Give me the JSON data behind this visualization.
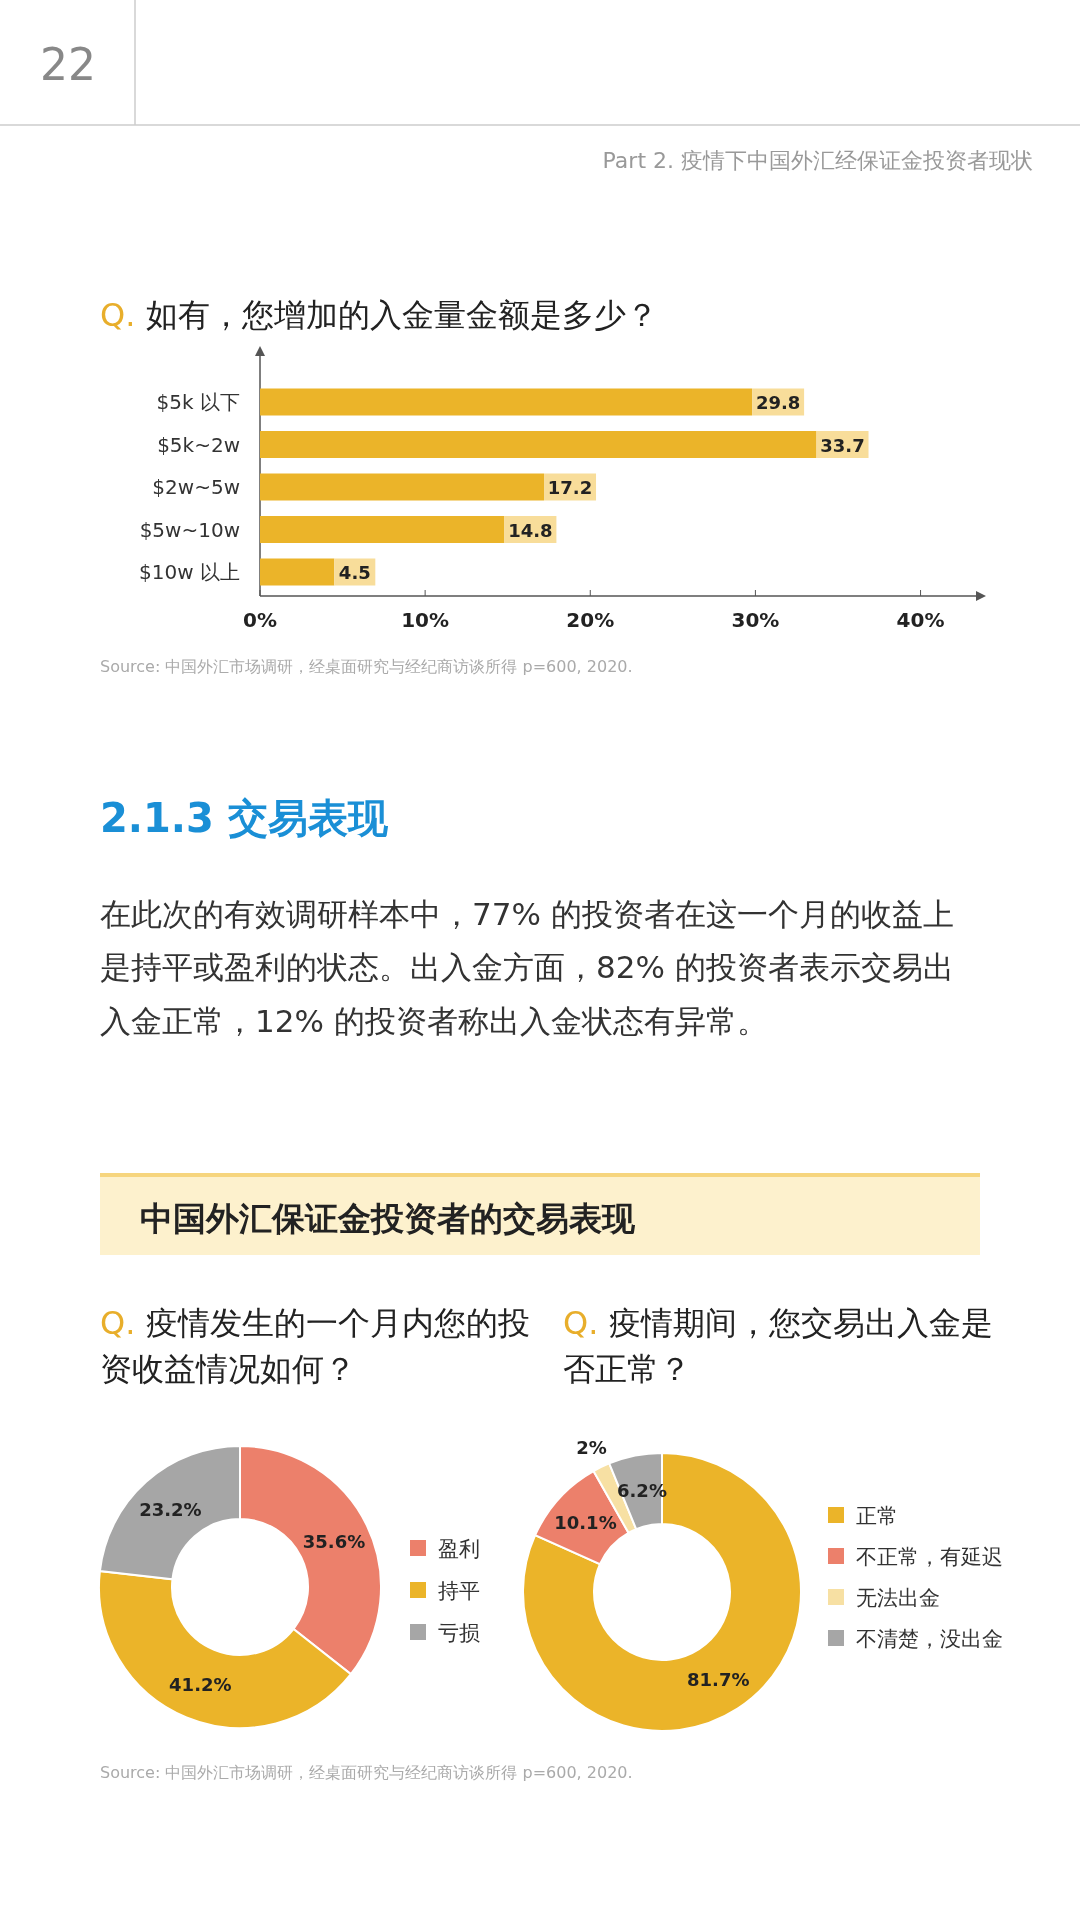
{
  "chart_data": [
    {
      "type": "bar",
      "orientation": "horizontal",
      "title": "Q. 如有，您增加的入金量金额是多少？",
      "categories": [
        "$5k 以下",
        "$5k~2w",
        "$2w~5w",
        "$5w~10w",
        "$10w 以上"
      ],
      "values": [
        29.8,
        33.7,
        17.2,
        14.8,
        4.5
      ],
      "color": "#ebb429",
      "data_labels": true,
      "xlim": [
        0,
        43.6
      ],
      "xticks": [
        {
          "value": 0,
          "label": "0%"
        },
        {
          "value": 10,
          "label": "10%"
        },
        {
          "value": 20,
          "label": "20%"
        },
        {
          "value": 30,
          "label": "30%"
        },
        {
          "value": 40,
          "label": "40%"
        }
      ],
      "annotations": [
        "22",
        "Part 2. 疫情下中国外汇经保证金投资者现状",
        "Source: 中国外汇市场调研，经桌面研究与经纪商访谈所得 p=600, 2020."
      ]
    },
    {
      "type": "donut",
      "title": "Q. 疫情发生的一个月内您的投资收益情况如何？",
      "categories": [
        "盈利",
        "持平",
        "亏损"
      ],
      "values": [
        35.6,
        41.2,
        23.2
      ],
      "colors": [
        "#ec806b",
        "#ebb429",
        "#a6a6a6"
      ],
      "value_labels": [
        "35.6%",
        "41.2%",
        "23.2%"
      ],
      "legend": "right",
      "annotations": [
        "2.1.3 交易表现",
        "在此次的有效调研样本中，77% 的投资者在这一个月的收益上是持平或盈利的状态。出入金方面，82% 的投资者表示交易出入金正常，12% 的投资者称出入金状态有异常。",
        "中国外汇保证金投资者的交易表现"
      ]
    },
    {
      "type": "donut",
      "title": "Q. 疫情期间，您交易出入金是否正常？",
      "categories": [
        "正常",
        "不正常，有延迟",
        "无法出金",
        "不清楚，没出金"
      ],
      "values": [
        81.7,
        10.1,
        2,
        6.2
      ],
      "colors": [
        "#ebb429",
        "#ec806b",
        "#f7e0a3",
        "#a6a6a6"
      ],
      "value_labels": [
        "81.7%",
        "10.1%",
        "2%",
        "6.2%"
      ],
      "legend": "right",
      "annotations": [
        "Source: 中国外汇市场调研，经桌面研究与经纪商访谈所得 p=600, 2020."
      ]
    }
  ]
}
